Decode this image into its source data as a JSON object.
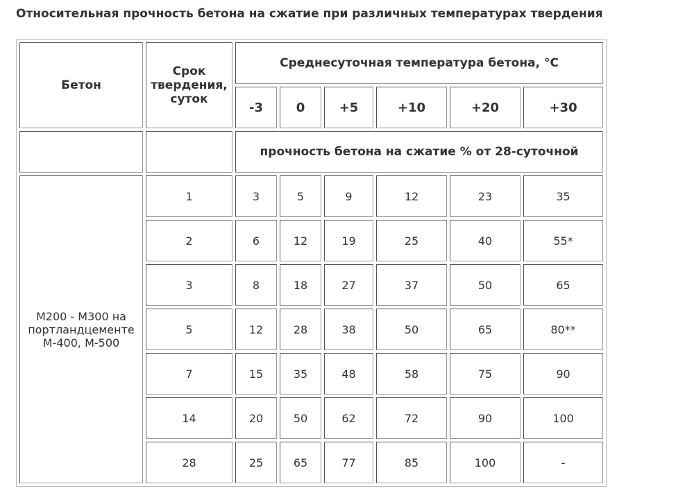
{
  "title": "Относительная прочность бетона на сжатие при различных температурах твердения",
  "header": {
    "beton": "Бетон",
    "srok": "Срок твердения, суток",
    "temp": "Среднесуточная температура бетона, °C",
    "temps": [
      "-3",
      "0",
      "+5",
      "+10",
      "+20",
      "+30"
    ],
    "strength": "прочность бетона на сжатие % от 28-суточной"
  },
  "concrete": "М200 - М300 на портландцементе М-400, М-500",
  "rows": [
    {
      "days": "1",
      "v": [
        "3",
        "5",
        "9",
        "12",
        "23",
        "35"
      ]
    },
    {
      "days": "2",
      "v": [
        "6",
        "12",
        "19",
        "25",
        "40",
        "55*"
      ]
    },
    {
      "days": "3",
      "v": [
        "8",
        "18",
        "27",
        "37",
        "50",
        "65"
      ]
    },
    {
      "days": "5",
      "v": [
        "12",
        "28",
        "38",
        "50",
        "65",
        "80**"
      ]
    },
    {
      "days": "7",
      "v": [
        "15",
        "35",
        "48",
        "58",
        "75",
        "90"
      ]
    },
    {
      "days": "14",
      "v": [
        "20",
        "50",
        "62",
        "72",
        "90",
        "100"
      ]
    },
    {
      "days": "28",
      "v": [
        "25",
        "65",
        "77",
        "85",
        "100",
        "-"
      ]
    }
  ]
}
